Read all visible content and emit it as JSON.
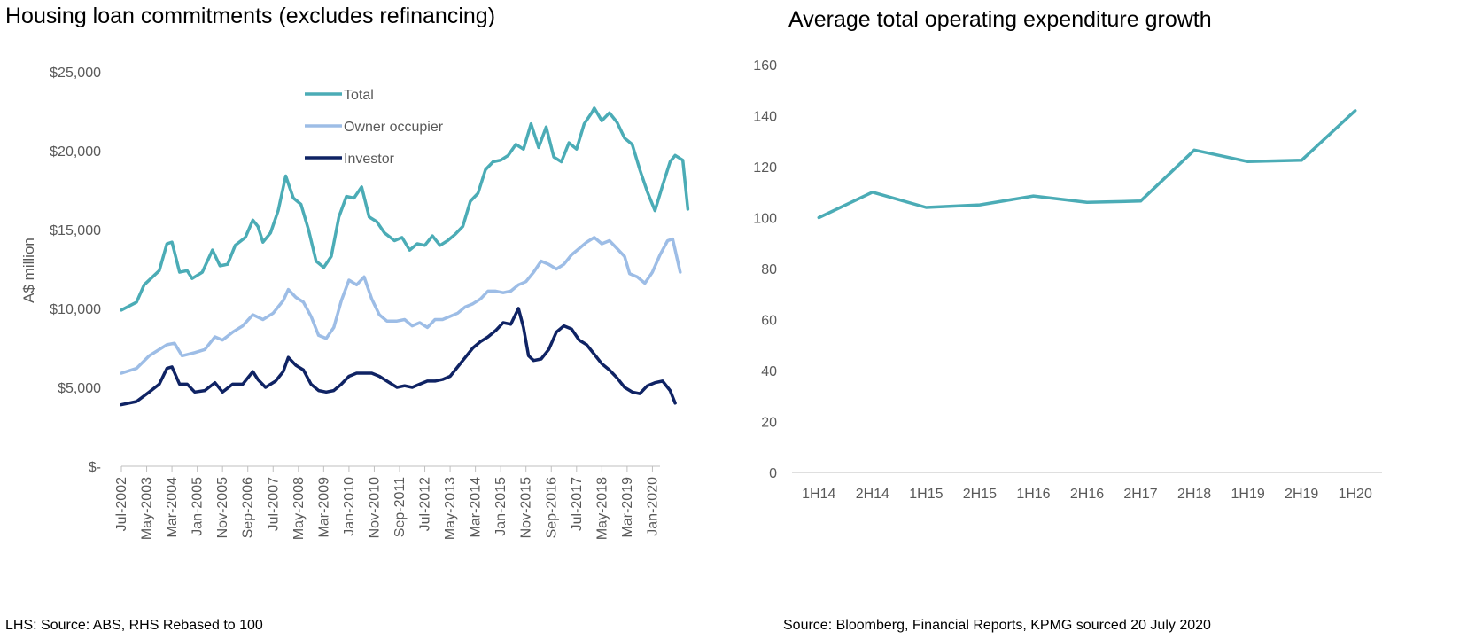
{
  "colors": {
    "total": "#4bacb6",
    "owner_occupier": "#9dbde6",
    "investor": "#0f2364",
    "rhs_line": "#4bacb6",
    "axis": "#bfbfbf",
    "tick_text": "#595959"
  },
  "sources": {
    "left": "LHS: Source: ABS, RHS Rebased to 100",
    "right": "Source: Bloomberg, Financial Reports, KPMG sourced 20 July 2020"
  },
  "chart_data": [
    {
      "type": "line",
      "title": "Housing loan commitments (excludes refinancing)",
      "xlabel": "",
      "ylabel": "A$ million",
      "ylim": [
        0,
        25000
      ],
      "y_ticks": [
        "$-",
        "$5,000",
        "$10,000",
        "$15,000",
        "$20,000",
        "$25,000"
      ],
      "y_tick_values": [
        0,
        5000,
        10000,
        15000,
        20000,
        25000
      ],
      "x_ticks": [
        "Jul-2002",
        "May-2003",
        "Mar-2004",
        "Jan-2005",
        "Nov-2005",
        "Sep-2006",
        "Jul-2007",
        "May-2008",
        "Mar-2009",
        "Jan-2010",
        "Nov-2010",
        "Sep-2011",
        "Jul-2012",
        "May-2013",
        "Mar-2014",
        "Jan-2015",
        "Nov-2015",
        "Sep-2016",
        "Jul-2017",
        "May-2018",
        "Mar-2019",
        "Jan-2020"
      ],
      "x_range": [
        "Jul-2002",
        "Apr-2020"
      ],
      "legend_position": "top-center",
      "series": [
        {
          "name": "Total",
          "points": [
            [
              "Jul-2002",
              9900
            ],
            [
              "Jan-2003",
              10400
            ],
            [
              "Apr-2003",
              11500
            ],
            [
              "Oct-2003",
              12400
            ],
            [
              "Jan-2004",
              14100
            ],
            [
              "Mar-2004",
              14200
            ],
            [
              "Jun-2004",
              12300
            ],
            [
              "Sep-2004",
              12400
            ],
            [
              "Nov-2004",
              11900
            ],
            [
              "Mar-2005",
              12300
            ],
            [
              "Jul-2005",
              13700
            ],
            [
              "Oct-2005",
              12700
            ],
            [
              "Jan-2006",
              12800
            ],
            [
              "Apr-2006",
              14000
            ],
            [
              "Aug-2006",
              14500
            ],
            [
              "Nov-2006",
              15600
            ],
            [
              "Jan-2007",
              15200
            ],
            [
              "Mar-2007",
              14200
            ],
            [
              "Jun-2007",
              14800
            ],
            [
              "Sep-2007",
              16200
            ],
            [
              "Dec-2007",
              18400
            ],
            [
              "Mar-2008",
              17000
            ],
            [
              "Jun-2008",
              16600
            ],
            [
              "Sep-2008",
              15000
            ],
            [
              "Dec-2008",
              13000
            ],
            [
              "Mar-2009",
              12600
            ],
            [
              "Jun-2009",
              13300
            ],
            [
              "Sep-2009",
              15800
            ],
            [
              "Dec-2009",
              17100
            ],
            [
              "Mar-2010",
              17000
            ],
            [
              "Jun-2010",
              17700
            ],
            [
              "Sep-2010",
              15800
            ],
            [
              "Dec-2010",
              15500
            ],
            [
              "Mar-2011",
              14800
            ],
            [
              "Jul-2011",
              14300
            ],
            [
              "Oct-2011",
              14500
            ],
            [
              "Jan-2012",
              13700
            ],
            [
              "Apr-2012",
              14100
            ],
            [
              "Jul-2012",
              14000
            ],
            [
              "Oct-2012",
              14600
            ],
            [
              "Jan-2013",
              14000
            ],
            [
              "Apr-2013",
              14300
            ],
            [
              "Jul-2013",
              14700
            ],
            [
              "Oct-2013",
              15200
            ],
            [
              "Jan-2014",
              16800
            ],
            [
              "Apr-2014",
              17300
            ],
            [
              "Jul-2014",
              18800
            ],
            [
              "Oct-2014",
              19300
            ],
            [
              "Jan-2015",
              19400
            ],
            [
              "Apr-2015",
              19700
            ],
            [
              "Jul-2015",
              20400
            ],
            [
              "Oct-2015",
              20100
            ],
            [
              "Jan-2016",
              21700
            ],
            [
              "Apr-2016",
              20200
            ],
            [
              "Jul-2016",
              21500
            ],
            [
              "Oct-2016",
              19600
            ],
            [
              "Jan-2017",
              19300
            ],
            [
              "Apr-2017",
              20500
            ],
            [
              "Jul-2017",
              20100
            ],
            [
              "Oct-2017",
              21700
            ],
            [
              "Jan-2018",
              22400
            ],
            [
              "Feb-2018",
              22700
            ],
            [
              "May-2018",
              21900
            ],
            [
              "Aug-2018",
              22400
            ],
            [
              "Nov-2018",
              21800
            ],
            [
              "Feb-2019",
              20800
            ],
            [
              "May-2019",
              20400
            ],
            [
              "Aug-2019",
              18800
            ],
            [
              "Nov-2019",
              17400
            ],
            [
              "Feb-2020",
              16200
            ],
            [
              "May-2020",
              17800
            ],
            [
              "Aug-2020",
              19300
            ],
            [
              "Oct-2020",
              19700
            ],
            [
              "Jan-2021",
              19400
            ],
            [
              "Mar-2021",
              16300
            ]
          ]
        },
        {
          "name": "Owner occupier",
          "points": [
            [
              "Jul-2002",
              5900
            ],
            [
              "Jan-2003",
              6200
            ],
            [
              "Jun-2003",
              7000
            ],
            [
              "Jan-2004",
              7700
            ],
            [
              "Apr-2004",
              7800
            ],
            [
              "Jul-2004",
              7000
            ],
            [
              "Dec-2004",
              7200
            ],
            [
              "Apr-2005",
              7400
            ],
            [
              "Aug-2005",
              8200
            ],
            [
              "Nov-2005",
              8000
            ],
            [
              "Mar-2006",
              8500
            ],
            [
              "Jul-2006",
              8900
            ],
            [
              "Nov-2006",
              9600
            ],
            [
              "Mar-2007",
              9300
            ],
            [
              "Jul-2007",
              9700
            ],
            [
              "Nov-2007",
              10500
            ],
            [
              "Jan-2008",
              11200
            ],
            [
              "Apr-2008",
              10700
            ],
            [
              "Jul-2008",
              10400
            ],
            [
              "Oct-2008",
              9500
            ],
            [
              "Jan-2009",
              8300
            ],
            [
              "Apr-2009",
              8100
            ],
            [
              "Jul-2009",
              8800
            ],
            [
              "Oct-2009",
              10500
            ],
            [
              "Jan-2010",
              11800
            ],
            [
              "Apr-2010",
              11500
            ],
            [
              "Jul-2010",
              12000
            ],
            [
              "Oct-2010",
              10600
            ],
            [
              "Jan-2011",
              9600
            ],
            [
              "Apr-2011",
              9200
            ],
            [
              "Aug-2011",
              9200
            ],
            [
              "Nov-2011",
              9300
            ],
            [
              "Feb-2012",
              8900
            ],
            [
              "May-2012",
              9100
            ],
            [
              "Aug-2012",
              8800
            ],
            [
              "Nov-2012",
              9300
            ],
            [
              "Feb-2013",
              9300
            ],
            [
              "May-2013",
              9500
            ],
            [
              "Aug-2013",
              9700
            ],
            [
              "Nov-2013",
              10100
            ],
            [
              "Feb-2014",
              10300
            ],
            [
              "May-2014",
              10600
            ],
            [
              "Aug-2014",
              11100
            ],
            [
              "Nov-2014",
              11100
            ],
            [
              "Feb-2015",
              11000
            ],
            [
              "May-2015",
              11100
            ],
            [
              "Aug-2015",
              11500
            ],
            [
              "Nov-2015",
              11700
            ],
            [
              "Feb-2016",
              12300
            ],
            [
              "May-2016",
              13000
            ],
            [
              "Aug-2016",
              12800
            ],
            [
              "Nov-2016",
              12500
            ],
            [
              "Feb-2017",
              12800
            ],
            [
              "May-2017",
              13400
            ],
            [
              "Aug-2017",
              13800
            ],
            [
              "Nov-2017",
              14200
            ],
            [
              "Feb-2018",
              14500
            ],
            [
              "May-2018",
              14100
            ],
            [
              "Aug-2018",
              14300
            ],
            [
              "Nov-2018",
              13800
            ],
            [
              "Feb-2019",
              13300
            ],
            [
              "Apr-2019",
              12200
            ],
            [
              "Jul-2019",
              12000
            ],
            [
              "Oct-2019",
              11600
            ],
            [
              "Jan-2020",
              12300
            ],
            [
              "Apr-2020",
              13400
            ],
            [
              "Jul-2020",
              14300
            ],
            [
              "Sep-2020",
              14400
            ],
            [
              "Dec-2020",
              12300
            ]
          ]
        },
        {
          "name": "Investor",
          "points": [
            [
              "Jul-2002",
              3900
            ],
            [
              "Jan-2003",
              4100
            ],
            [
              "Jun-2003",
              4700
            ],
            [
              "Oct-2003",
              5200
            ],
            [
              "Jan-2004",
              6200
            ],
            [
              "Mar-2004",
              6300
            ],
            [
              "Jun-2004",
              5200
            ],
            [
              "Sep-2004",
              5200
            ],
            [
              "Dec-2004",
              4700
            ],
            [
              "Apr-2005",
              4800
            ],
            [
              "Aug-2005",
              5300
            ],
            [
              "Nov-2005",
              4700
            ],
            [
              "Mar-2006",
              5200
            ],
            [
              "Jul-2006",
              5200
            ],
            [
              "Nov-2006",
              6000
            ],
            [
              "Jan-2007",
              5500
            ],
            [
              "Apr-2007",
              5000
            ],
            [
              "Aug-2007",
              5400
            ],
            [
              "Nov-2007",
              6000
            ],
            [
              "Jan-2008",
              6900
            ],
            [
              "Apr-2008",
              6400
            ],
            [
              "Jul-2008",
              6100
            ],
            [
              "Oct-2008",
              5200
            ],
            [
              "Jan-2009",
              4800
            ],
            [
              "Apr-2009",
              4700
            ],
            [
              "Jul-2009",
              4800
            ],
            [
              "Oct-2009",
              5200
            ],
            [
              "Jan-2010",
              5700
            ],
            [
              "Apr-2010",
              5900
            ],
            [
              "Jul-2010",
              5900
            ],
            [
              "Oct-2010",
              5900
            ],
            [
              "Jan-2011",
              5700
            ],
            [
              "Apr-2011",
              5400
            ],
            [
              "Aug-2011",
              5000
            ],
            [
              "Nov-2011",
              5100
            ],
            [
              "Feb-2012",
              5000
            ],
            [
              "May-2012",
              5200
            ],
            [
              "Aug-2012",
              5400
            ],
            [
              "Nov-2012",
              5400
            ],
            [
              "Feb-2013",
              5500
            ],
            [
              "May-2013",
              5700
            ],
            [
              "Aug-2013",
              6300
            ],
            [
              "Nov-2013",
              6900
            ],
            [
              "Feb-2014",
              7500
            ],
            [
              "May-2014",
              7900
            ],
            [
              "Aug-2014",
              8200
            ],
            [
              "Nov-2014",
              8600
            ],
            [
              "Feb-2015",
              9100
            ],
            [
              "May-2015",
              9000
            ],
            [
              "Aug-2015",
              10000
            ],
            [
              "Oct-2015",
              8800
            ],
            [
              "Dec-2015",
              7000
            ],
            [
              "Feb-2016",
              6700
            ],
            [
              "May-2016",
              6800
            ],
            [
              "Aug-2016",
              7400
            ],
            [
              "Nov-2016",
              8500
            ],
            [
              "Feb-2017",
              8900
            ],
            [
              "May-2017",
              8700
            ],
            [
              "Aug-2017",
              8000
            ],
            [
              "Nov-2017",
              7700
            ],
            [
              "Feb-2018",
              7100
            ],
            [
              "May-2018",
              6500
            ],
            [
              "Aug-2018",
              6100
            ],
            [
              "Nov-2018",
              5600
            ],
            [
              "Feb-2019",
              5000
            ],
            [
              "May-2019",
              4700
            ],
            [
              "Aug-2019",
              4600
            ],
            [
              "Nov-2019",
              5100
            ],
            [
              "Feb-2020",
              5300
            ],
            [
              "May-2020",
              5400
            ],
            [
              "Aug-2020",
              4800
            ],
            [
              "Oct-2020",
              4000
            ]
          ]
        }
      ]
    },
    {
      "type": "line",
      "title": "Average total operating expenditure growth",
      "xlabel": "",
      "ylabel": "",
      "ylim": [
        0,
        160
      ],
      "y_ticks": [
        "0",
        "20",
        "40",
        "60",
        "80",
        "100",
        "120",
        "140",
        "160"
      ],
      "y_tick_values": [
        0,
        20,
        40,
        60,
        80,
        100,
        120,
        140,
        160
      ],
      "categories": [
        "1H14",
        "2H14",
        "1H15",
        "2H15",
        "1H16",
        "2H16",
        "2H17",
        "2H18",
        "1H19",
        "2H19",
        "1H20"
      ],
      "values": [
        100,
        110,
        104,
        105,
        108.5,
        106,
        106.5,
        126.5,
        122,
        122.5,
        142
      ],
      "legend_position": "none"
    }
  ]
}
